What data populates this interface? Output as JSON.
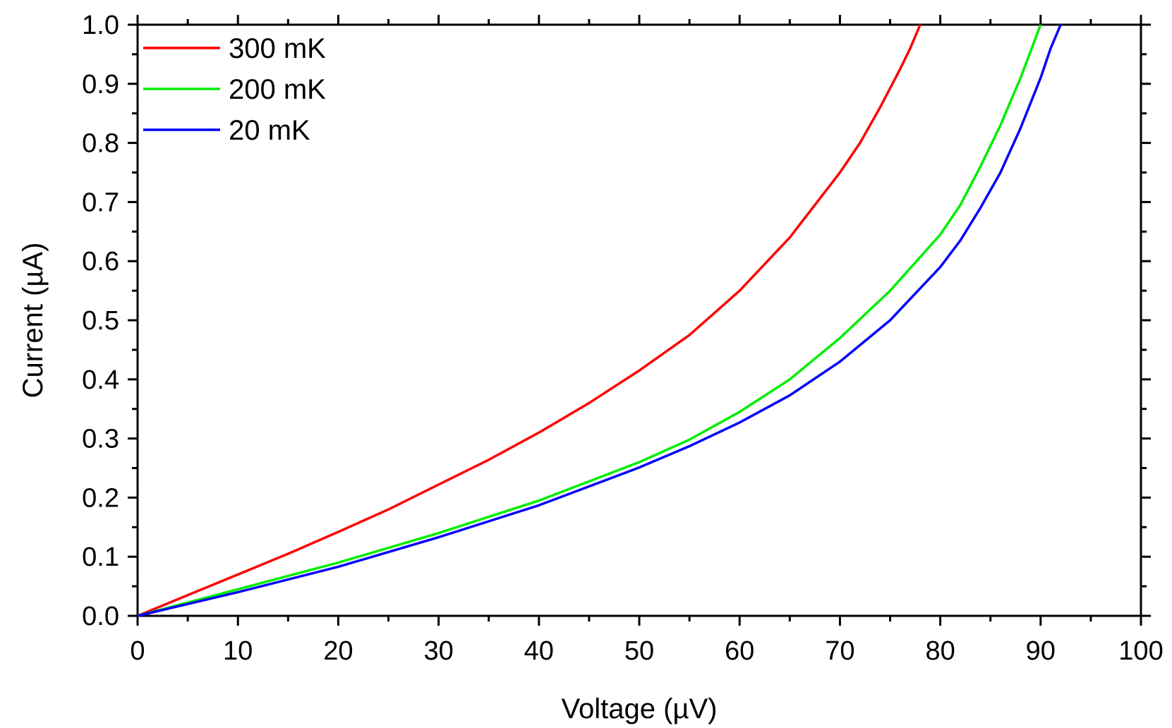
{
  "chart_data": {
    "type": "line",
    "xlabel": "Voltage (µV)",
    "ylabel": "Current (µA)",
    "xlim": [
      0,
      100
    ],
    "ylim": [
      0,
      1.0
    ],
    "xticks": [
      "0",
      "10",
      "20",
      "30",
      "40",
      "50",
      "60",
      "70",
      "80",
      "90",
      "100"
    ],
    "yticks": [
      "0.0",
      "0.1",
      "0.2",
      "0.3",
      "0.4",
      "0.5",
      "0.6",
      "0.7",
      "0.8",
      "0.9",
      "1.0"
    ],
    "grid": false,
    "legend_position": "top-left",
    "series": [
      {
        "name": "300 mK",
        "color": "#ff0000",
        "x": [
          0,
          5,
          10,
          15,
          20,
          25,
          30,
          35,
          40,
          45,
          50,
          55,
          60,
          65,
          70,
          72,
          74,
          76,
          77,
          78
        ],
        "y": [
          0.0,
          0.035,
          0.07,
          0.105,
          0.142,
          0.18,
          0.222,
          0.264,
          0.31,
          0.36,
          0.415,
          0.475,
          0.55,
          0.64,
          0.75,
          0.8,
          0.86,
          0.925,
          0.96,
          1.0
        ]
      },
      {
        "name": "200 mK",
        "color": "#00ee00",
        "x": [
          0,
          10,
          20,
          30,
          40,
          50,
          55,
          60,
          65,
          70,
          75,
          80,
          82,
          84,
          86,
          88,
          89,
          90
        ],
        "y": [
          0.0,
          0.045,
          0.09,
          0.14,
          0.195,
          0.26,
          0.298,
          0.345,
          0.4,
          0.47,
          0.55,
          0.645,
          0.695,
          0.76,
          0.83,
          0.91,
          0.955,
          1.0
        ]
      },
      {
        "name": "20 mK",
        "color": "#0000ff",
        "x": [
          0,
          10,
          20,
          30,
          40,
          50,
          55,
          60,
          65,
          70,
          75,
          80,
          82,
          84,
          86,
          88,
          90,
          91,
          92
        ],
        "y": [
          0.0,
          0.04,
          0.083,
          0.133,
          0.187,
          0.251,
          0.287,
          0.327,
          0.373,
          0.43,
          0.5,
          0.59,
          0.635,
          0.69,
          0.75,
          0.825,
          0.91,
          0.96,
          1.0
        ]
      }
    ]
  }
}
